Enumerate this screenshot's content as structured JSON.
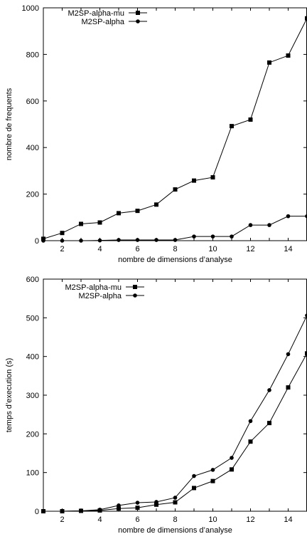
{
  "chart_data": [
    {
      "type": "line",
      "xlabel": "nombre de dimensions d’analyse",
      "ylabel": "nombre de frequents",
      "xlim": [
        1,
        15
      ],
      "ylim": [
        0,
        1000
      ],
      "xticks": [
        "2",
        "4",
        "6",
        "8",
        "10",
        "12",
        "14"
      ],
      "yticks": [
        "0",
        "200",
        "400",
        "600",
        "800",
        "1000"
      ],
      "grid": false,
      "legend_position": "top-left",
      "x": [
        1,
        2,
        3,
        4,
        5,
        6,
        7,
        8,
        9,
        10,
        11,
        12,
        13,
        14,
        15
      ],
      "series": [
        {
          "name": "M2SP-alpha-mu",
          "marker": "square",
          "values": [
            8,
            33,
            72,
            78,
            118,
            128,
            155,
            220,
            258,
            272,
            492,
            520,
            765,
            795,
            955
          ]
        },
        {
          "name": "M2SP-alpha",
          "marker": "circle",
          "values": [
            0,
            0,
            0,
            1,
            3,
            3,
            3,
            3,
            18,
            18,
            18,
            67,
            67,
            105,
            105
          ]
        }
      ]
    },
    {
      "type": "line",
      "xlabel": "nombre de dimensions d’analyse",
      "ylabel": "temps d’execution (s)",
      "xlim": [
        1,
        15
      ],
      "ylim": [
        0,
        600
      ],
      "xticks": [
        "2",
        "4",
        "6",
        "8",
        "10",
        "12",
        "14"
      ],
      "yticks": [
        "0",
        "100",
        "200",
        "300",
        "400",
        "500",
        "600"
      ],
      "grid": false,
      "legend_position": "top-left",
      "x": [
        1,
        2,
        3,
        4,
        5,
        6,
        7,
        8,
        9,
        10,
        11,
        12,
        13,
        14,
        15
      ],
      "series": [
        {
          "name": "M2SP-alpha-mu",
          "marker": "square",
          "values": [
            0,
            0,
            1,
            2,
            7,
            9,
            17,
            23,
            60,
            78,
            108,
            180,
            228,
            320,
            408
          ]
        },
        {
          "name": "M2SP-alpha",
          "marker": "circle",
          "values": [
            0,
            0,
            1,
            4,
            15,
            22,
            24,
            35,
            91,
            107,
            138,
            233,
            313,
            406,
            506
          ]
        }
      ]
    }
  ]
}
